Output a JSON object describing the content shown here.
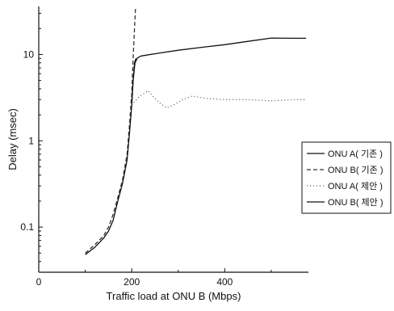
{
  "chart_data": {
    "type": "line",
    "xlabel": "Traffic load at ONU B (Mbps)",
    "ylabel": "Delay (msec)",
    "xlim": [
      0,
      580
    ],
    "ylim": [
      0.03,
      36
    ],
    "yscale": "log",
    "x_ticks": [
      0,
      200,
      400
    ],
    "y_ticks": [
      0.1,
      1,
      10
    ],
    "y_tick_labels": [
      "0.1",
      "1",
      "10"
    ],
    "grid": false,
    "legend_position": "right",
    "series": [
      {
        "name": "ONU A( 기존 )",
        "color": "#111111",
        "dash": "",
        "x": [
          200,
          203,
          207,
          212,
          220,
          260,
          300,
          350,
          400,
          450,
          500,
          550,
          575
        ],
        "y": [
          2.8,
          5.0,
          8.0,
          9.1,
          9.6,
          10.4,
          11.2,
          12.1,
          13.0,
          14.2,
          15.5,
          15.4,
          15.4
        ]
      },
      {
        "name": "ONU B( 기존 )",
        "color": "#333333",
        "dash": "5,3",
        "x": [
          100,
          120,
          140,
          150,
          160,
          170,
          180,
          190,
          195,
          200,
          203,
          206,
          208
        ],
        "y": [
          0.05,
          0.062,
          0.08,
          0.1,
          0.14,
          0.22,
          0.35,
          0.7,
          1.5,
          3.5,
          9.0,
          20.0,
          34.0
        ]
      },
      {
        "name": "ONU A( 제안 )",
        "color": "#555555",
        "dash": "1,3",
        "x": [
          200,
          215,
          235,
          250,
          262,
          275,
          290,
          310,
          330,
          360,
          400,
          450,
          500,
          550,
          575
        ],
        "y": [
          2.6,
          3.2,
          3.8,
          3.1,
          2.7,
          2.4,
          2.6,
          3.0,
          3.3,
          3.1,
          3.0,
          3.0,
          2.9,
          3.0,
          3.0
        ]
      },
      {
        "name": "ONU B( 제안 )",
        "color": "#111111",
        "dash": "",
        "x": [
          100,
          120,
          140,
          150,
          160,
          170,
          180,
          190,
          195,
          200,
          203,
          206,
          209
        ],
        "y": [
          0.048,
          0.058,
          0.075,
          0.09,
          0.12,
          0.2,
          0.32,
          0.6,
          1.2,
          2.6,
          5.0,
          8.0,
          9.0
        ]
      }
    ]
  }
}
